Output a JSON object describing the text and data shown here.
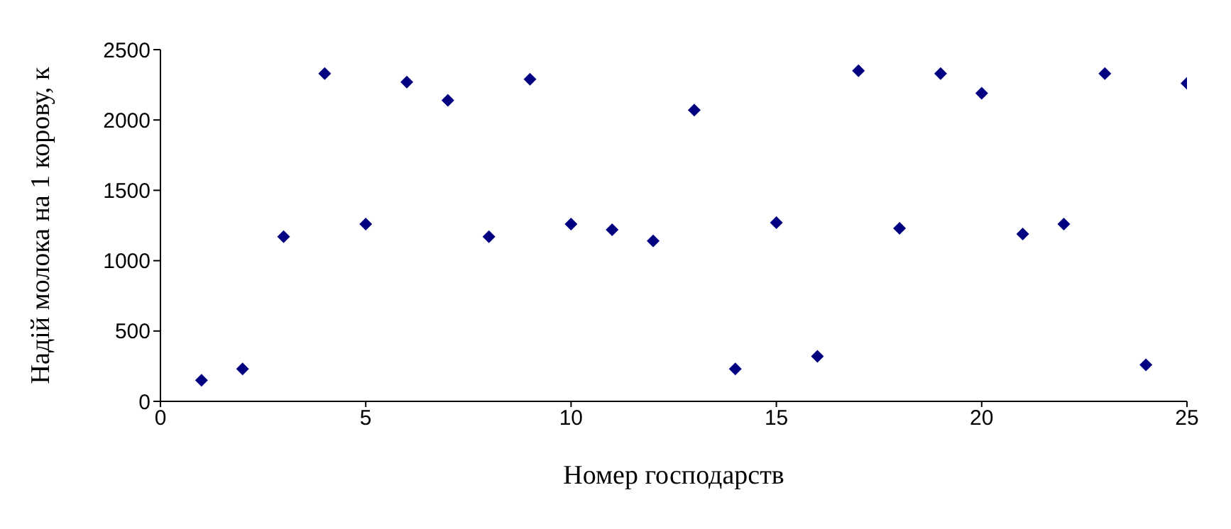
{
  "chart_data": {
    "type": "scatter",
    "xlabel": "Номер  господарств",
    "ylabel": "Надій молока на 1 корову, к",
    "x": [
      1,
      2,
      3,
      4,
      5,
      6,
      7,
      8,
      9,
      10,
      11,
      12,
      13,
      14,
      15,
      16,
      17,
      18,
      19,
      20,
      21,
      22,
      23,
      24,
      25
    ],
    "series": [
      {
        "color": "#000080",
        "values": [
          150,
          230,
          1170,
          2330,
          1260,
          2270,
          2140,
          1170,
          2290,
          1260,
          1220,
          1140,
          2070,
          230,
          1270,
          320,
          2350,
          1230,
          2330,
          2190,
          1190,
          1260,
          2330,
          260,
          2260
        ]
      }
    ],
    "xlim": [
      0,
      25
    ],
    "xticks": [
      0,
      5,
      10,
      15,
      20,
      25
    ],
    "ylim": [
      0,
      2500
    ],
    "yticks": [
      0,
      500,
      1000,
      1500,
      2000,
      2500
    ],
    "marker": "diamond",
    "grid": false,
    "legend": false
  }
}
